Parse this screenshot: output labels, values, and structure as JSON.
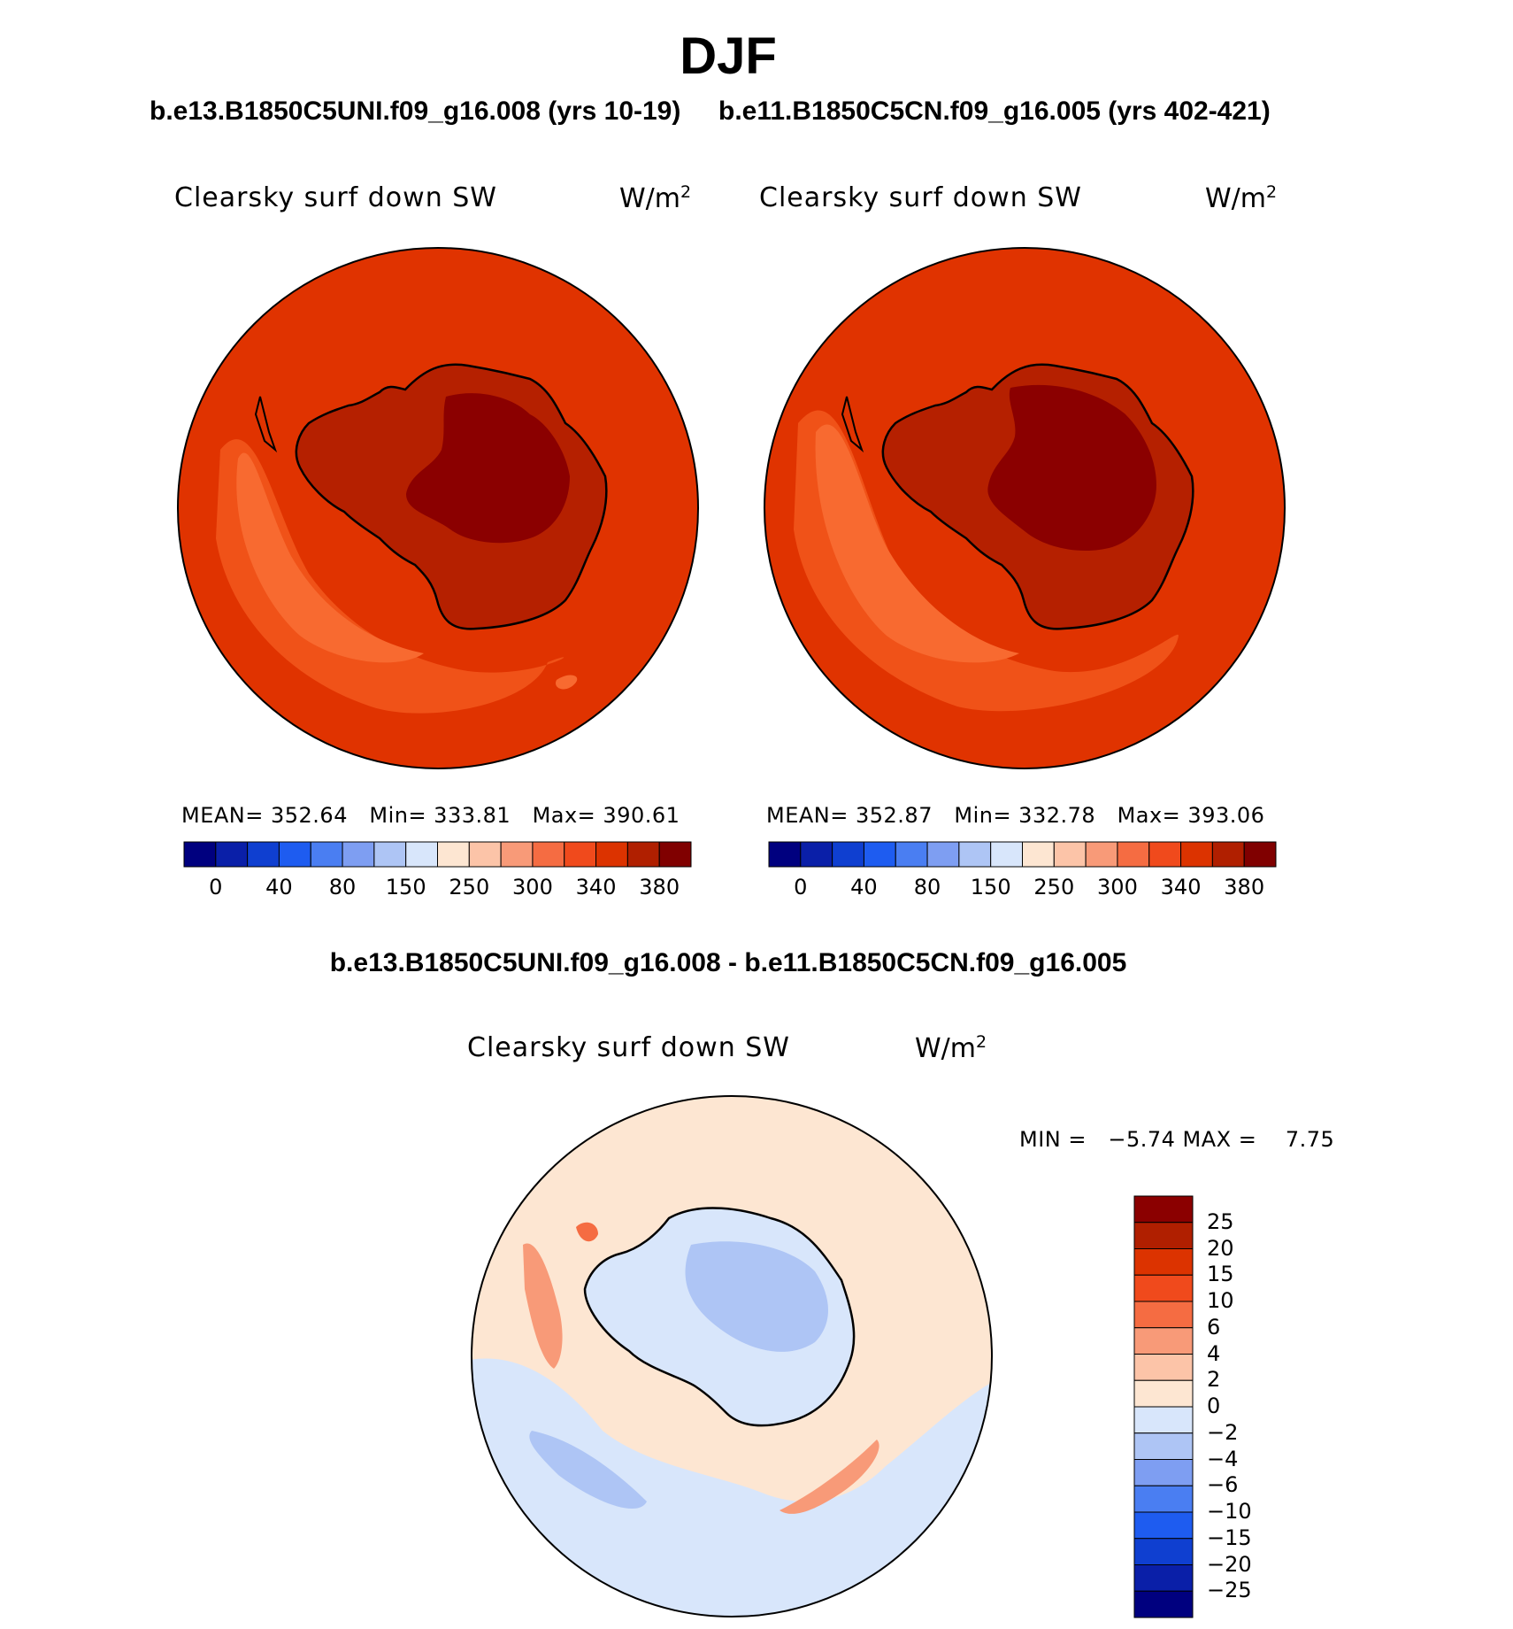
{
  "title": "DJF",
  "panels": [
    {
      "case": "b.e13.B1850C5UNI.f09_g16.008 (yrs 10-19)",
      "variable": "Clearsky surf down SW",
      "units": "W/m",
      "units_exp": "2",
      "stats": {
        "mean": "MEAN= 352.64",
        "min": "Min= 333.81",
        "max": "Max= 390.61"
      }
    },
    {
      "case": "b.e11.B1850C5CN.f09_g16.005 (yrs 402-421)",
      "variable": "Clearsky surf down SW",
      "units": "W/m",
      "units_exp": "2",
      "stats": {
        "mean": "MEAN= 352.87",
        "min": "Min= 332.78",
        "max": "Max= 393.06"
      }
    }
  ],
  "diff": {
    "title": "b.e13.B1850C5UNI.f09_g16.008 - b.e11.B1850C5CN.f09_g16.005",
    "variable": "Clearsky surf down SW",
    "units": "W/m",
    "units_exp": "2",
    "minmax": "MIN =   −5.74 MAX =    7.75"
  },
  "colorbar_abs": {
    "colors": [
      "#00007f",
      "#0a1fa8",
      "#0f3fd0",
      "#1e5cf0",
      "#4a7ef2",
      "#7e9ef2",
      "#aec5f5",
      "#d8e6fb",
      "#fde6d2",
      "#fcc4a8",
      "#f89a78",
      "#f56c42",
      "#f04a1c",
      "#dc3300",
      "#b01f00",
      "#800000"
    ],
    "labels": [
      "0",
      "40",
      "80",
      "150",
      "250",
      "300",
      "340",
      "380"
    ]
  },
  "colorbar_diff": {
    "colors": [
      "#8b0000",
      "#b01f00",
      "#dc3300",
      "#f04a1c",
      "#f56c42",
      "#f89a78",
      "#fcc4a8",
      "#fde6d2",
      "#d8e6fb",
      "#aec5f5",
      "#7e9ef2",
      "#4a7ef2",
      "#1e5cf0",
      "#0f3fd0",
      "#0a1fa8",
      "#00007f"
    ],
    "labels": [
      "25",
      "20",
      "15",
      "10",
      "6",
      "4",
      "2",
      "0",
      "−2",
      "−4",
      "−6",
      "−10",
      "−15",
      "−20",
      "−25"
    ]
  },
  "map_colors": {
    "ocean": "#e03300",
    "ring": "#f04f1c",
    "ring2": "#f86030",
    "land1": "#b52000",
    "land2": "#8b0000",
    "diff_bg": "#fde6d2",
    "diff_blue": "#d8e6fb",
    "diff_blue2": "#aec5f5",
    "diff_pos": "#fcc4a8",
    "diff_pos2": "#f89a78",
    "diff_pos3": "#f56c42"
  }
}
